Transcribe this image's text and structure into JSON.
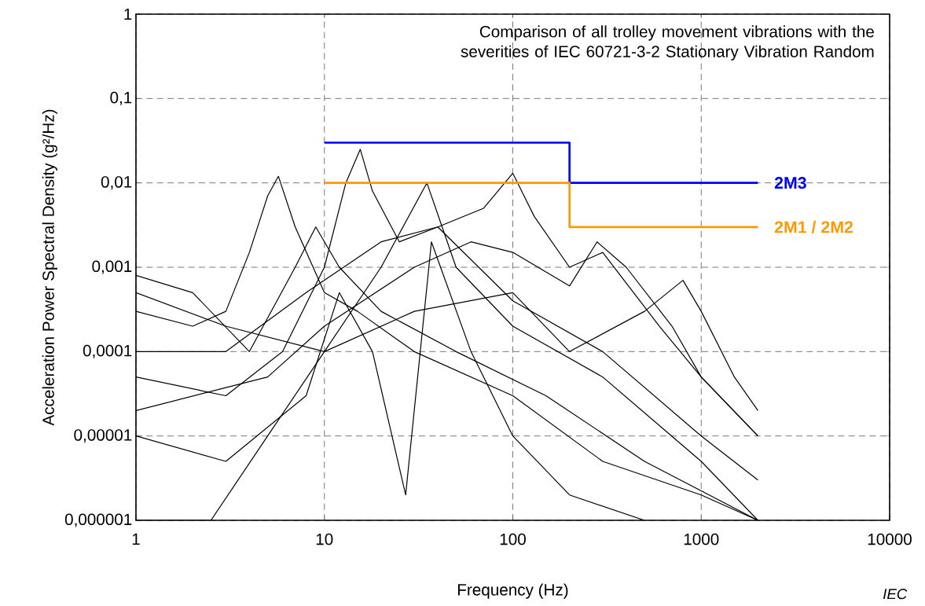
{
  "chart_data": {
    "type": "line",
    "title": "Comparison of all trolley movement  vibrations with the severities of IEC 60721-3-2  Stationary Vibration Random",
    "xlabel": "Frequency  (Hz)",
    "ylabel": "Acceleration Power  Spectral Density  (g²/Hz)",
    "log": "xy",
    "grid": true,
    "xlim": [
      1,
      10000
    ],
    "xticks": [
      1,
      10,
      100,
      1000,
      10000
    ],
    "ylim": [
      1e-06,
      1
    ],
    "yticks": [
      {
        "value": 1e-06,
        "label": "0,000001"
      },
      {
        "value": 1e-05,
        "label": "0,00001"
      },
      {
        "value": 0.0001,
        "label": "0,0001"
      },
      {
        "value": 0.001,
        "label": "0,001"
      },
      {
        "value": 0.01,
        "label": "0,01"
      },
      {
        "value": 0.1,
        "label": "0,1"
      },
      1
    ],
    "annotations": [
      "IEC"
    ],
    "series": [
      {
        "color": "#000000",
        "x": [
          1,
          2,
          3,
          4,
          5,
          5.7,
          7,
          10,
          15,
          30,
          100,
          300,
          1000,
          2000
        ],
        "values": [
          0.0003,
          0.0002,
          0.0003,
          0.0015,
          0.007,
          0.012,
          0.003,
          0.0005,
          0.0003,
          0.0001,
          3e-05,
          5e-06,
          2e-06,
          1e-06
        ]
      },
      {
        "color": "#000000",
        "x": [
          1,
          3,
          6,
          10,
          13,
          15.5,
          18,
          25,
          40,
          100,
          300,
          1000,
          2000
        ],
        "values": [
          5e-05,
          3e-05,
          0.0001,
          0.001,
          0.01,
          0.025,
          0.008,
          0.002,
          0.003,
          0.0004,
          0.0001,
          1e-05,
          3e-06
        ]
      },
      {
        "color": "#000000",
        "x": [
          1,
          3,
          8,
          20,
          40,
          70,
          100,
          130,
          200,
          300,
          600,
          1000,
          2000
        ],
        "values": [
          0.0001,
          0.0001,
          0.0005,
          0.002,
          0.003,
          0.005,
          0.013,
          0.004,
          0.001,
          0.0015,
          0.0002,
          5e-05,
          1e-05
        ]
      },
      {
        "color": "#000000",
        "x": [
          1,
          5,
          10,
          30,
          60,
          100,
          200,
          280,
          400,
          700,
          1000,
          2000
        ],
        "values": [
          2e-05,
          5e-05,
          0.0002,
          0.001,
          0.002,
          0.0015,
          0.0006,
          0.002,
          0.001,
          0.0002,
          5e-05,
          1e-05
        ]
      },
      {
        "color": "#000000",
        "x": [
          1,
          3,
          10,
          30,
          100,
          200,
          500,
          800,
          1000,
          1500,
          2000
        ],
        "values": [
          0.0005,
          0.0002,
          0.0001,
          0.0003,
          0.0005,
          0.0001,
          0.0003,
          0.0007,
          0.0003,
          5e-05,
          2e-05
        ]
      },
      {
        "color": "#000000",
        "x": [
          1,
          3,
          8,
          12,
          18,
          27,
          37,
          60,
          100,
          200,
          500
        ],
        "values": [
          1e-05,
          5e-06,
          3e-05,
          0.0005,
          0.0001,
          2e-06,
          0.002,
          0.0001,
          1e-05,
          2e-06,
          1e-06
        ]
      },
      {
        "color": "#000000",
        "x": [
          1,
          2.5,
          5,
          10,
          20,
          35,
          50,
          100,
          300,
          1000,
          2000
        ],
        "values": [
          1e-06,
          1e-06,
          1e-05,
          0.0001,
          0.001,
          0.01,
          0.001,
          0.0002,
          5e-05,
          5e-06,
          1e-06
        ]
      },
      {
        "color": "#000000",
        "x": [
          1,
          2,
          4,
          7,
          9,
          12,
          20,
          50,
          150,
          500,
          2000
        ],
        "values": [
          0.0008,
          0.0005,
          0.0001,
          0.001,
          0.003,
          0.001,
          0.0003,
          0.0001,
          3e-05,
          5e-06,
          1e-06
        ]
      },
      {
        "type": "step",
        "name": "2M3",
        "color": "#0000ff",
        "x": [
          10,
          200,
          2000
        ],
        "values": [
          0.03,
          0.01,
          0.01
        ]
      },
      {
        "type": "step",
        "name": "2M1 / 2M2",
        "color": "#ff9900",
        "x": [
          10,
          200,
          2000
        ],
        "values": [
          0.01,
          0.003,
          0.003
        ]
      }
    ]
  }
}
